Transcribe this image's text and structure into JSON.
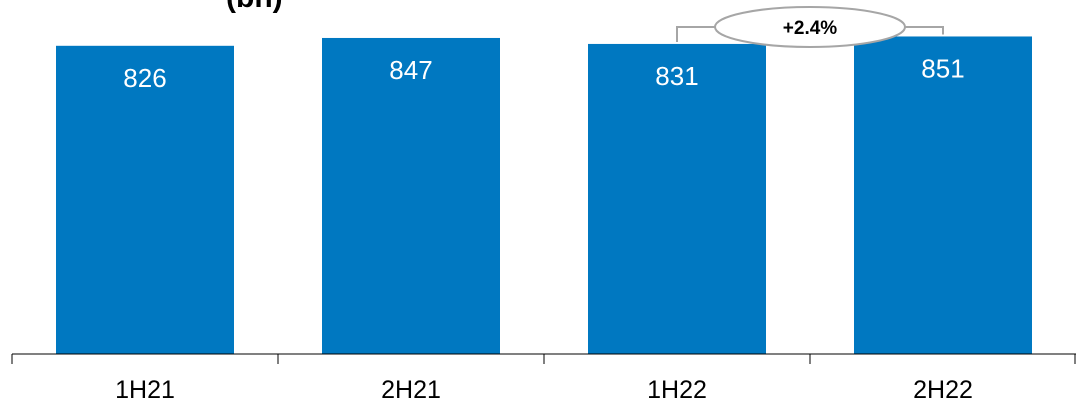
{
  "title_fragment": "(bn)",
  "colors": {
    "bar": "#0078C1",
    "axis": "#000000",
    "annotation_border": "#A6A6A6"
  },
  "chart_data": {
    "type": "bar",
    "categories": [
      "1H21",
      "2H21",
      "1H22",
      "2H22"
    ],
    "values": [
      826,
      847,
      831,
      851
    ],
    "value_labels": [
      "826",
      "847",
      "831",
      "851"
    ],
    "ylim": [
      0,
      930
    ],
    "grid": false,
    "annotations": [
      {
        "text": "+2.4%",
        "from_category": "1H22",
        "to_category": "2H22"
      }
    ]
  }
}
